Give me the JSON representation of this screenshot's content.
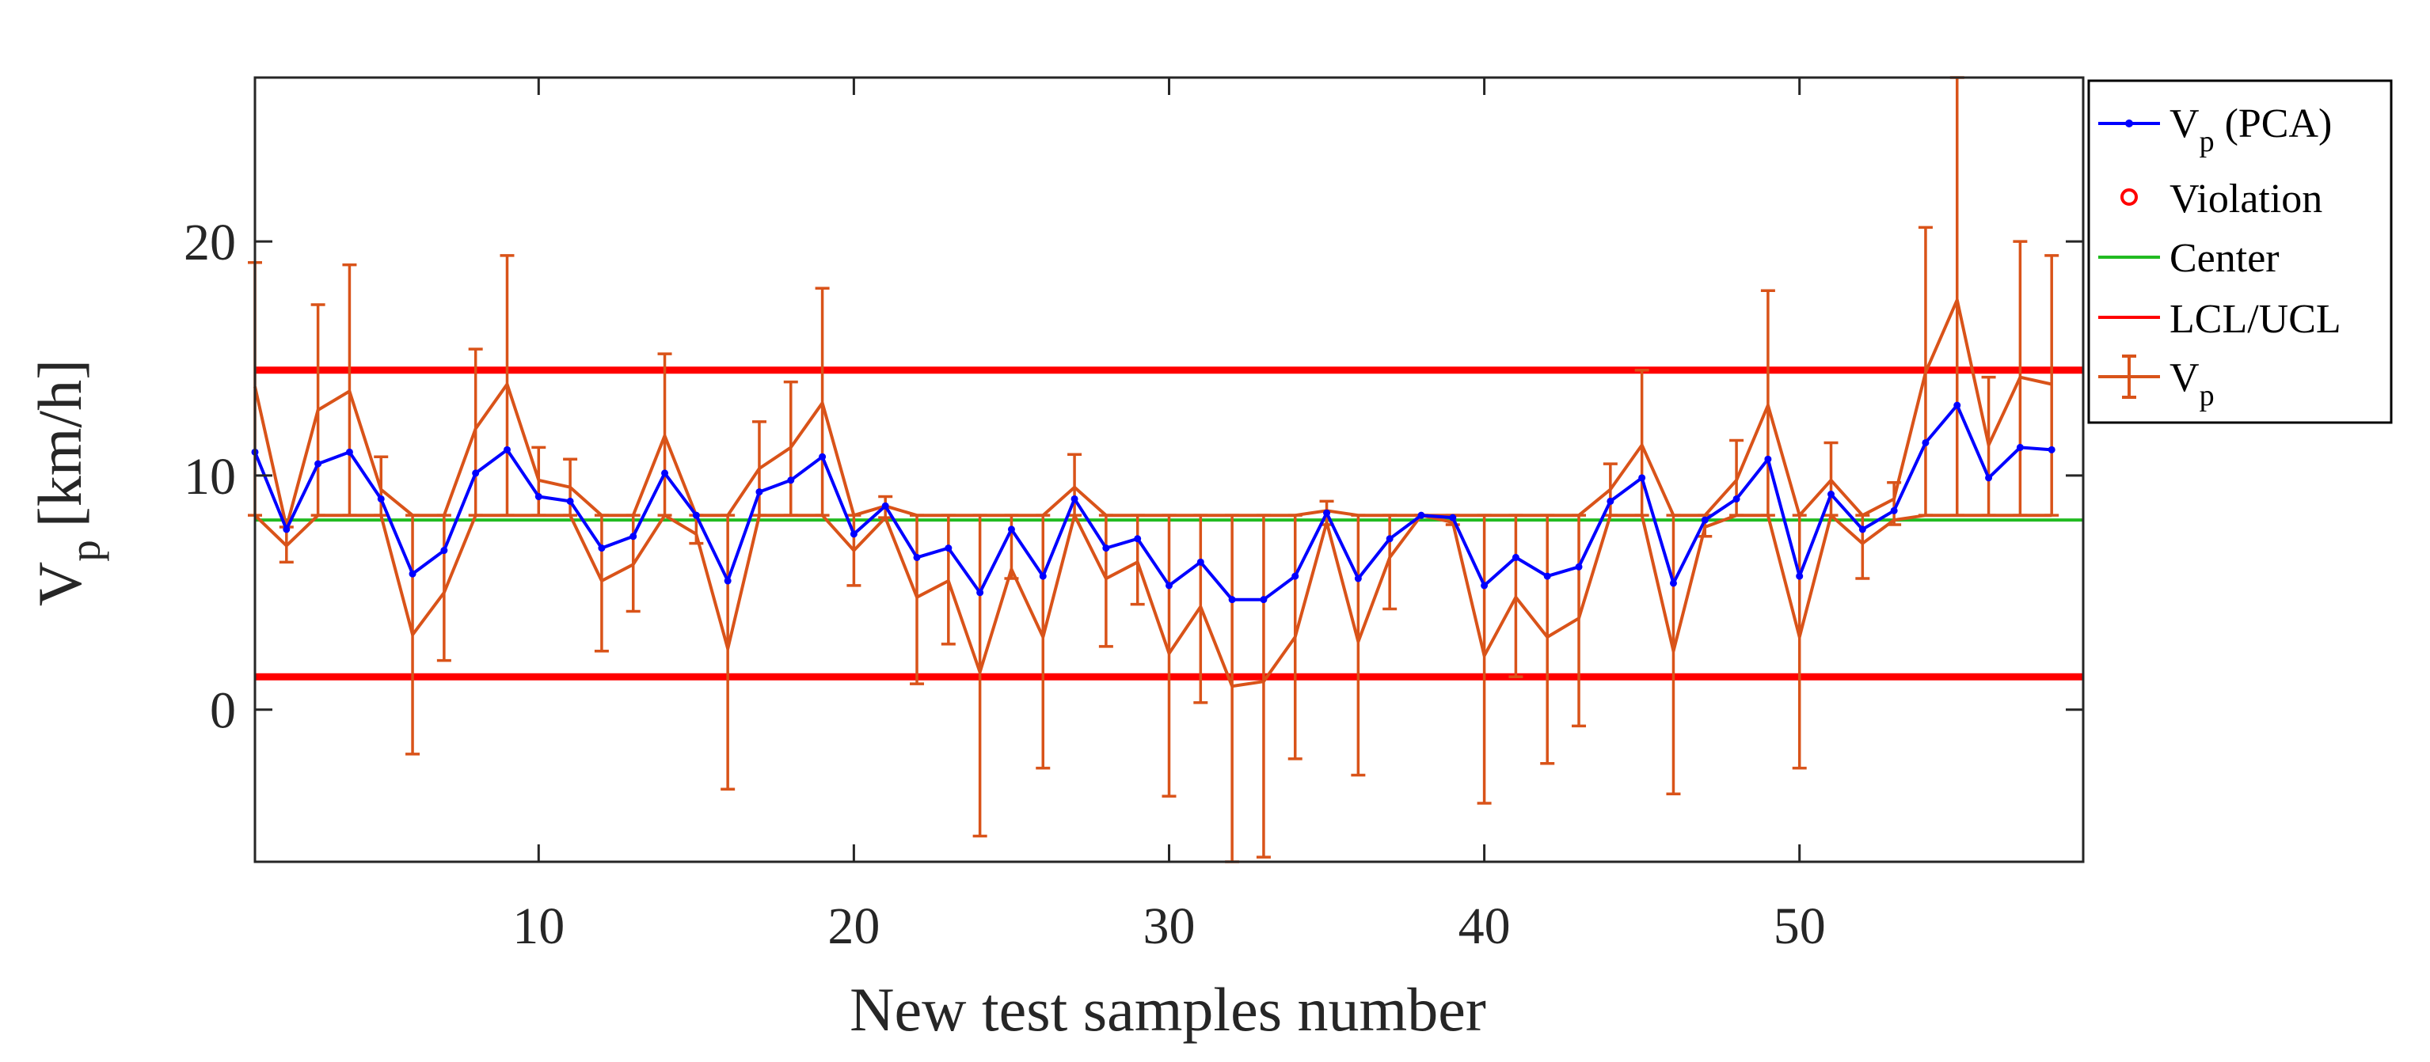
{
  "chart_data": {
    "type": "line",
    "title": "",
    "xlabel": "New test samples number",
    "ylabel_main": "V",
    "ylabel_sub": "p",
    "ylabel_unit": "[km/h]",
    "xlim": [
      1,
      59
    ],
    "ylim": [
      -6.5,
      27
    ],
    "xticks": [
      10,
      20,
      30,
      40,
      50
    ],
    "yticks": [
      0,
      10,
      20
    ],
    "xtick_labels": [
      "10",
      "20",
      "30",
      "40",
      "50"
    ],
    "ytick_labels": [
      "0",
      "10",
      "20"
    ],
    "center": 8.1,
    "lcl": 1.4,
    "ucl": 14.5,
    "x": [
      1,
      2,
      3,
      4,
      5,
      6,
      7,
      8,
      9,
      10,
      11,
      12,
      13,
      14,
      15,
      16,
      17,
      18,
      19,
      20,
      21,
      22,
      23,
      24,
      25,
      26,
      27,
      28,
      29,
      30,
      31,
      32,
      33,
      34,
      35,
      36,
      37,
      38,
      39,
      40,
      41,
      42,
      43,
      44,
      45,
      46,
      47,
      48,
      49,
      50,
      51,
      52,
      53,
      54,
      55,
      56,
      57,
      58
    ],
    "vp_pca": [
      11.0,
      7.7,
      10.5,
      11.0,
      9.0,
      5.8,
      6.8,
      10.1,
      11.1,
      9.1,
      8.9,
      6.9,
      7.4,
      10.1,
      8.3,
      5.5,
      9.3,
      9.8,
      10.8,
      7.5,
      8.7,
      6.5,
      6.9,
      5.0,
      7.7,
      5.7,
      9.0,
      6.9,
      7.3,
      5.3,
      6.3,
      4.7,
      4.7,
      5.7,
      8.4,
      5.6,
      7.3,
      8.3,
      8.2,
      5.3,
      6.5,
      5.7,
      6.1,
      8.9,
      9.9,
      5.4,
      8.1,
      9.0,
      10.7,
      5.7,
      9.2,
      7.7,
      8.5,
      11.4,
      13.0,
      9.9,
      11.2,
      11.1
    ],
    "vp_upper": [
      13.8,
      7.8,
      12.8,
      13.6,
      9.4,
      8.3,
      8.3,
      12.0,
      13.9,
      9.8,
      9.5,
      8.3,
      8.3,
      11.7,
      8.3,
      8.3,
      10.3,
      11.2,
      13.1,
      8.3,
      8.7,
      8.3,
      8.3,
      8.3,
      8.3,
      8.3,
      9.5,
      8.3,
      8.3,
      8.3,
      8.3,
      8.3,
      8.3,
      8.3,
      8.5,
      8.3,
      8.3,
      8.3,
      8.3,
      8.3,
      8.3,
      8.3,
      8.3,
      9.4,
      11.3,
      8.3,
      8.3,
      9.8,
      13.0,
      8.3,
      9.8,
      8.3,
      9.0,
      14.4,
      17.5,
      11.3,
      14.2,
      13.9
    ],
    "vp_lower": [
      8.3,
      7.0,
      8.3,
      8.3,
      8.3,
      3.2,
      5.0,
      8.3,
      8.3,
      8.3,
      8.3,
      5.5,
      6.2,
      8.3,
      7.5,
      2.6,
      8.3,
      8.3,
      8.3,
      6.8,
      8.2,
      4.8,
      5.5,
      1.6,
      6.0,
      3.1,
      8.3,
      5.6,
      6.3,
      2.4,
      4.4,
      1.0,
      1.2,
      3.1,
      8.0,
      2.9,
      6.5,
      8.3,
      8.0,
      2.3,
      4.8,
      3.1,
      3.9,
      8.3,
      8.3,
      2.5,
      7.8,
      8.3,
      8.3,
      3.1,
      8.3,
      7.1,
      8.1,
      8.3,
      8.3,
      8.3,
      8.3,
      8.3
    ],
    "err_upper": [
      19.1,
      7.8,
      17.3,
      19.0,
      10.8,
      8.3,
      8.3,
      15.4,
      19.4,
      11.2,
      10.7,
      8.3,
      8.3,
      15.2,
      8.3,
      8.3,
      12.3,
      14.0,
      18.0,
      8.3,
      9.1,
      8.3,
      8.3,
      8.3,
      8.3,
      8.3,
      10.9,
      8.3,
      8.3,
      8.3,
      8.3,
      8.3,
      8.3,
      8.3,
      8.9,
      8.3,
      8.3,
      8.3,
      8.3,
      8.3,
      8.3,
      8.3,
      8.3,
      10.5,
      14.5,
      8.3,
      8.3,
      11.5,
      17.9,
      8.3,
      11.4,
      8.3,
      9.7,
      20.6,
      27.0,
      14.2,
      20.0,
      19.4
    ],
    "err_lower": [
      8.3,
      6.3,
      8.3,
      8.3,
      8.3,
      -1.9,
      2.1,
      8.3,
      8.3,
      8.3,
      8.3,
      2.5,
      4.2,
      8.3,
      7.1,
      -3.4,
      8.3,
      8.3,
      8.3,
      5.3,
      8.2,
      1.1,
      2.8,
      -5.4,
      5.6,
      -2.5,
      8.3,
      2.7,
      4.5,
      -3.7,
      0.3,
      -6.5,
      -6.3,
      -2.1,
      7.9,
      -2.8,
      4.3,
      8.3,
      7.9,
      -4.0,
      1.4,
      -2.3,
      -0.7,
      8.3,
      8.3,
      -3.6,
      7.4,
      8.3,
      8.3,
      -2.5,
      8.3,
      5.6,
      7.9,
      8.3,
      8.3,
      8.3,
      8.3,
      8.3
    ],
    "colors": {
      "pca": "#0000ff",
      "center": "#22bb22",
      "limits": "#ff0000",
      "vp": "#d95319",
      "violation": "#ff0000",
      "axes": "#262626"
    },
    "legend": {
      "position": "outside-top-right",
      "entries": [
        {
          "label": "V",
          "sub": "p",
          "suffix": " (PCA)"
        },
        {
          "label": "Violation",
          "sub": "",
          "suffix": ""
        },
        {
          "label": "Center",
          "sub": "",
          "suffix": ""
        },
        {
          "label": "LCL/UCL",
          "sub": "",
          "suffix": ""
        },
        {
          "label": "V",
          "sub": "p",
          "suffix": ""
        }
      ]
    }
  }
}
